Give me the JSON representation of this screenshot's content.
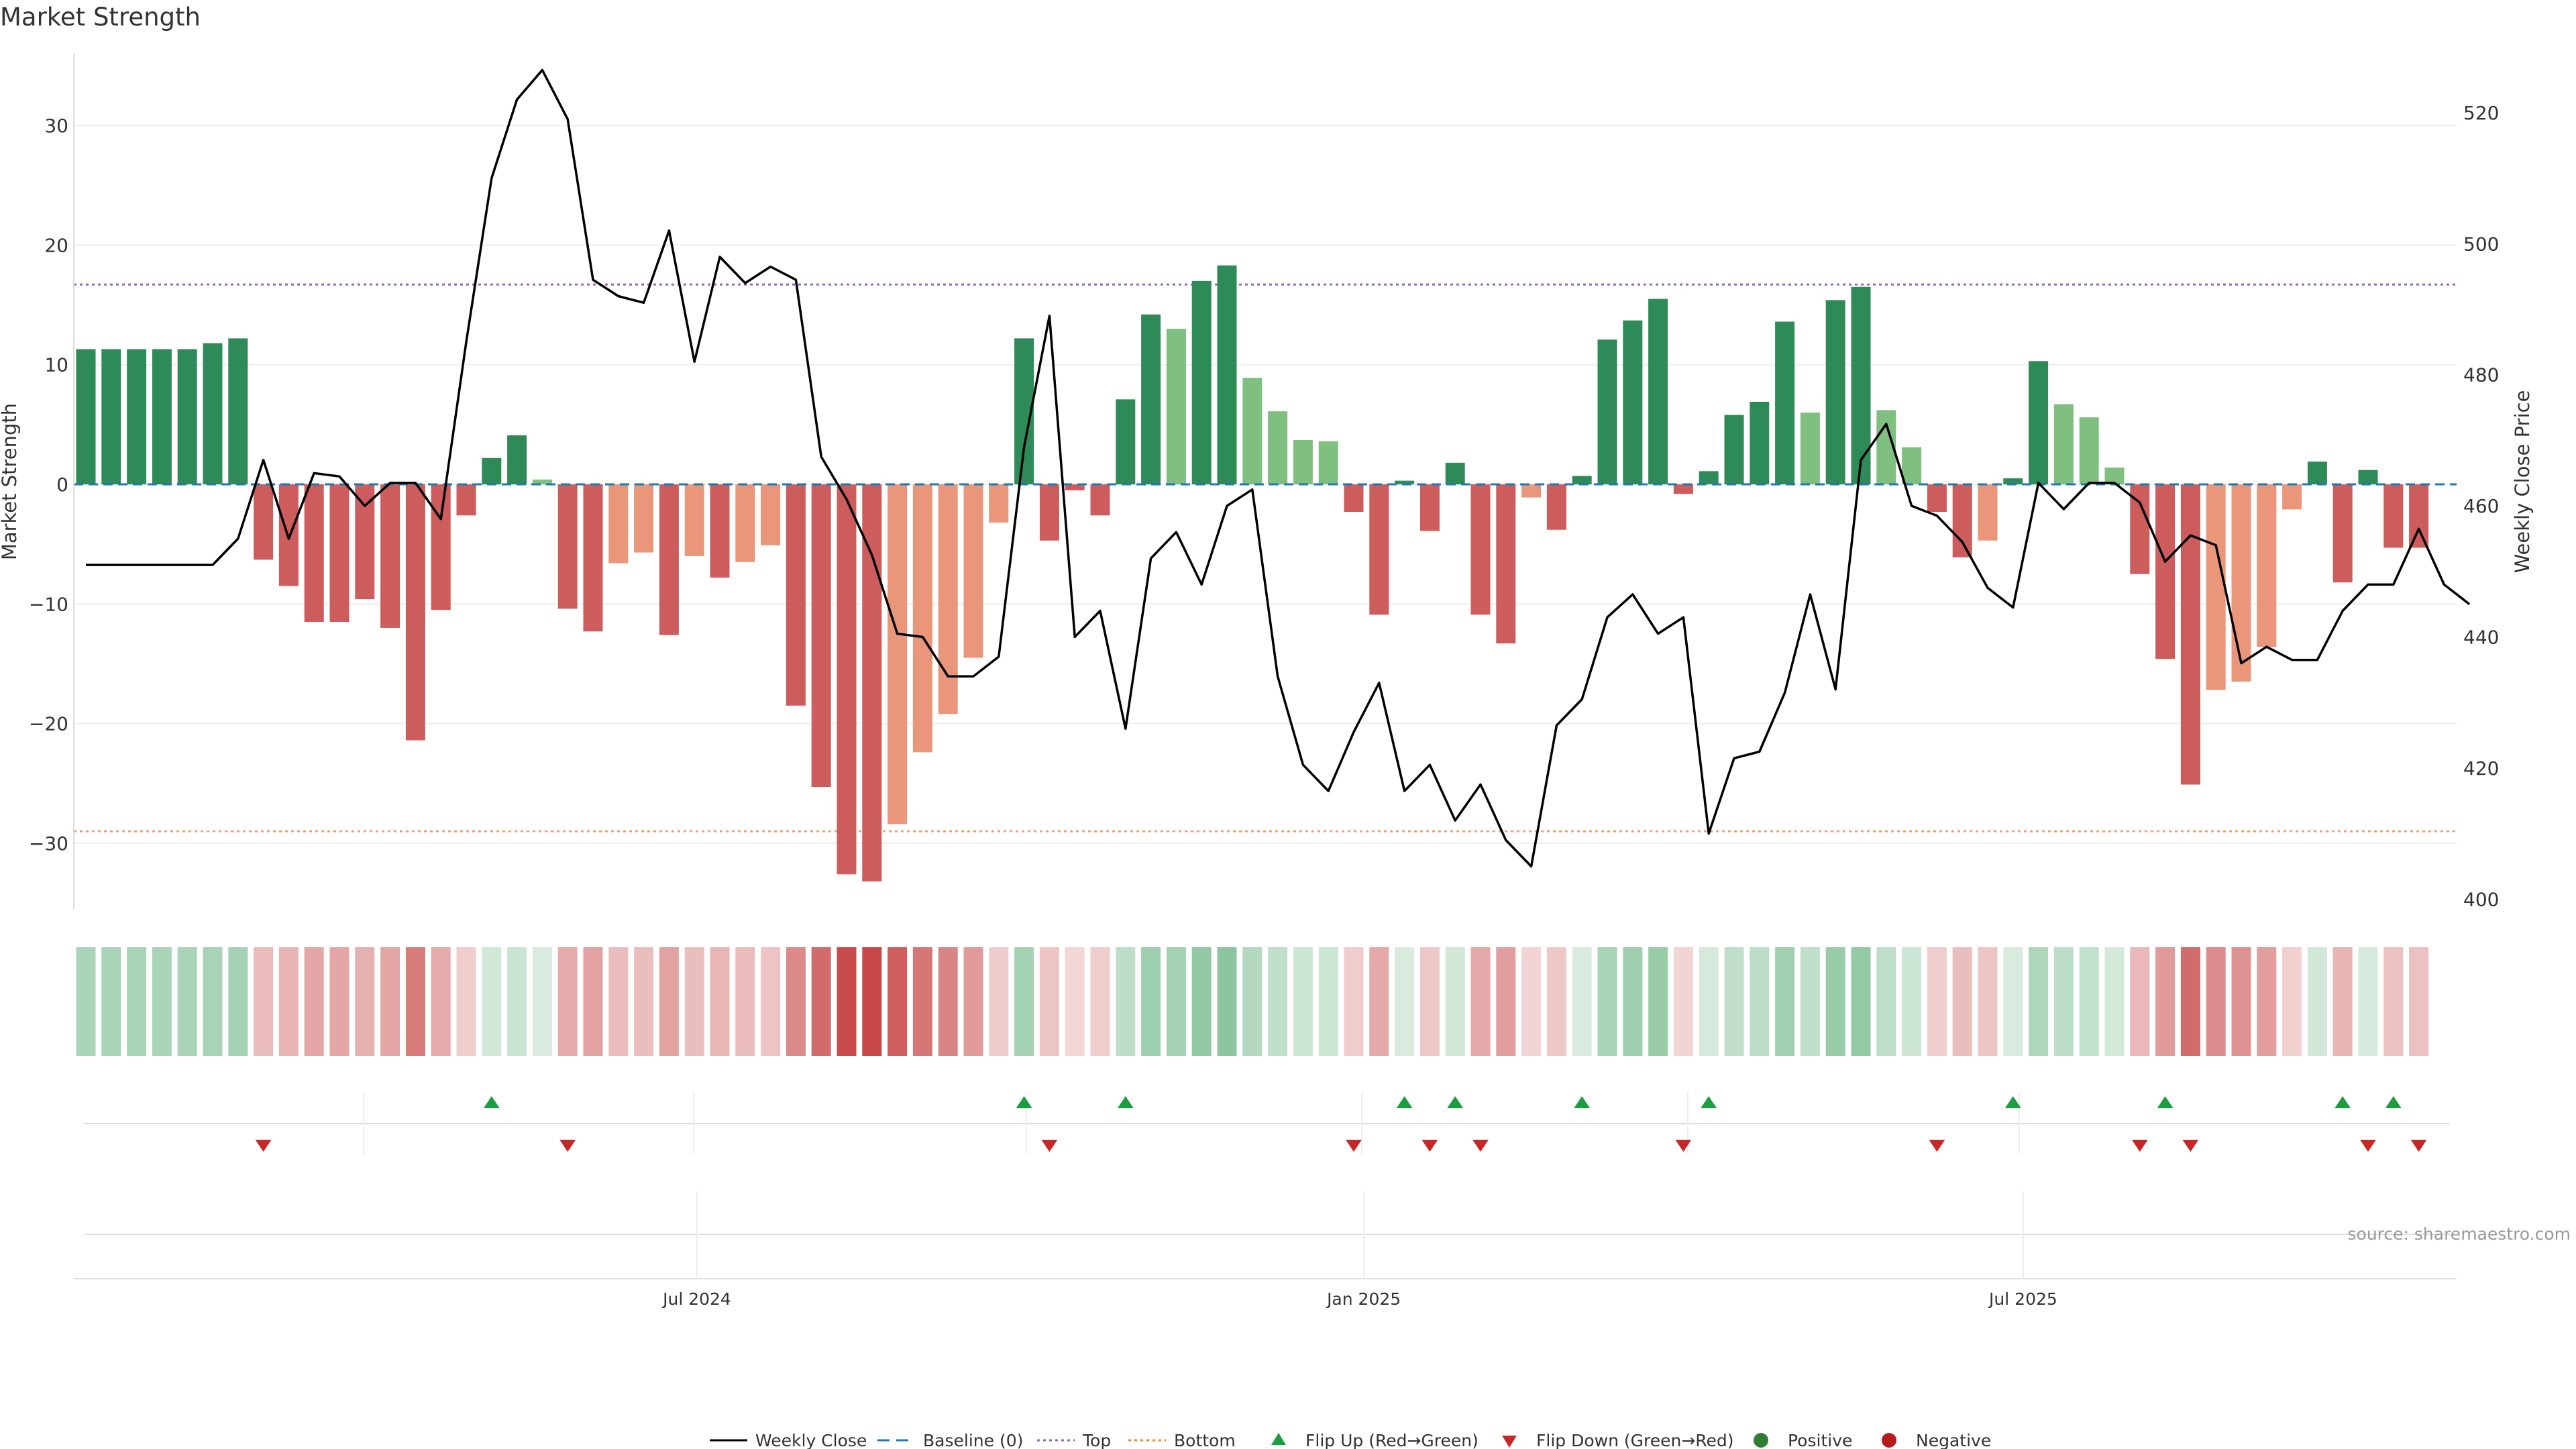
{
  "chart_data": {
    "type": "bar",
    "title": "Market Strength",
    "ylabel": "Market Strength",
    "y2label": "Weekly Close Price",
    "ylim": [
      -35.5,
      36
    ],
    "y2lim": [
      398.5,
      529
    ],
    "yticks": [
      30,
      20,
      10,
      0,
      -10,
      -20,
      -30
    ],
    "y2ticks": [
      520,
      500,
      480,
      460,
      440,
      420,
      400
    ],
    "top_line": 16.7,
    "bottom_line": -29.0,
    "baseline": 0,
    "x_tick_labels": [
      {
        "label": "Jul 2024",
        "week": 24.1
      },
      {
        "label": "Jan 2025",
        "week": 50.4
      },
      {
        "label": "Jul 2025",
        "week": 76.4
      }
    ],
    "series": [
      {
        "name": "Market Strength",
        "values": [
          11.3,
          11.3,
          11.3,
          11.3,
          11.3,
          11.8,
          12.2,
          -6.3,
          -8.5,
          -11.5,
          -11.5,
          -9.6,
          -12.0,
          -21.4,
          -10.5,
          -2.6,
          2.2,
          4.1,
          0.4,
          -10.4,
          -12.3,
          -6.6,
          -5.7,
          -12.6,
          -6.0,
          -7.8,
          -6.5,
          -5.1,
          -18.5,
          -25.3,
          -32.6,
          -33.2,
          -28.4,
          -22.4,
          -19.2,
          -14.5,
          -3.2,
          12.2,
          -4.7,
          -0.5,
          -2.6,
          7.1,
          14.2,
          13.0,
          17.0,
          18.3,
          8.9,
          6.1,
          3.7,
          3.6,
          -2.3,
          -10.9,
          0.3,
          -3.9,
          1.8,
          -10.9,
          -13.3,
          -1.1,
          -3.8,
          0.7,
          12.1,
          13.7,
          15.5,
          -0.8,
          1.1,
          5.8,
          6.9,
          13.6,
          6.0,
          15.4,
          16.5,
          6.2,
          3.1,
          -2.3,
          -6.1,
          -4.7,
          0.5,
          10.3,
          6.7,
          5.6,
          1.4,
          -7.5,
          -14.6,
          -25.1,
          -17.2,
          -16.5,
          -13.6,
          -2.1,
          1.9,
          -8.2,
          1.2,
          -5.3,
          -5.3
        ]
      },
      {
        "name": "Weekly Close",
        "values": [
          451,
          451,
          451,
          451,
          451,
          451,
          455,
          467,
          455,
          465,
          464.5,
          460,
          463.5,
          463.5,
          458,
          485,
          510,
          522,
          526.5,
          519,
          494.5,
          492,
          491,
          502,
          482,
          498,
          494,
          496.5,
          494.5,
          467.5,
          461,
          452.5,
          440.5,
          440,
          434,
          434,
          437,
          469,
          489,
          440,
          444,
          426,
          452,
          456,
          448,
          460,
          462.5,
          434,
          420.5,
          416.5,
          425.5,
          433,
          416.5,
          420.5,
          412,
          417.5,
          409,
          405,
          426.5,
          430.5,
          443,
          446.5,
          440.5,
          443,
          410,
          421.5,
          422.5,
          431.5,
          446.5,
          432,
          467,
          472.5,
          460,
          458.5,
          454.5,
          447.5,
          444.5,
          463.5,
          459.5,
          463.5,
          463.5,
          460.5,
          451.5,
          455.5,
          454,
          436,
          438.5,
          436.5,
          436.5,
          444,
          448,
          448,
          456.5,
          448,
          445
        ]
      }
    ],
    "bar_colors": {
      "strong_positive": "#2e8b57",
      "weak_positive": "#7fbf7f",
      "strong_negative": "#cd5c5c",
      "weak_negative": "#e9967a"
    },
    "weak_weeks": [
      18,
      21,
      22,
      24,
      26,
      27,
      32,
      33,
      34,
      35,
      36,
      43,
      46,
      47,
      48,
      49,
      57,
      68,
      71,
      72,
      75,
      78,
      79,
      80,
      84,
      85,
      86,
      87
    ],
    "flip_up_weeks": [
      16,
      37,
      41,
      52,
      54,
      59,
      64,
      76,
      82,
      89,
      91
    ],
    "flip_down_weeks": [
      7,
      19,
      38,
      50,
      53,
      55,
      63,
      73,
      81,
      83,
      90,
      92
    ],
    "source_text": "source: sharemaestro.com",
    "legend_position": "bottom-center",
    "legend": [
      {
        "label": "Weekly Close",
        "kind": "line",
        "color": "#000000"
      },
      {
        "label": "Baseline (0)",
        "kind": "dash",
        "color": "#1f77b4"
      },
      {
        "label": "Top",
        "kind": "dot",
        "color": "#9467bd"
      },
      {
        "label": "Bottom",
        "kind": "dot",
        "color": "#ff7f0e"
      },
      {
        "label": "Flip Up (Red→Green)",
        "kind": "up",
        "color": "#1a9e3f"
      },
      {
        "label": "Flip Down (Green→Red)",
        "kind": "down",
        "color": "#c62828"
      },
      {
        "label": "Positive",
        "kind": "circle",
        "color": "#2e7d32"
      },
      {
        "label": "Negative",
        "kind": "circle",
        "color": "#b71c1c"
      }
    ]
  }
}
